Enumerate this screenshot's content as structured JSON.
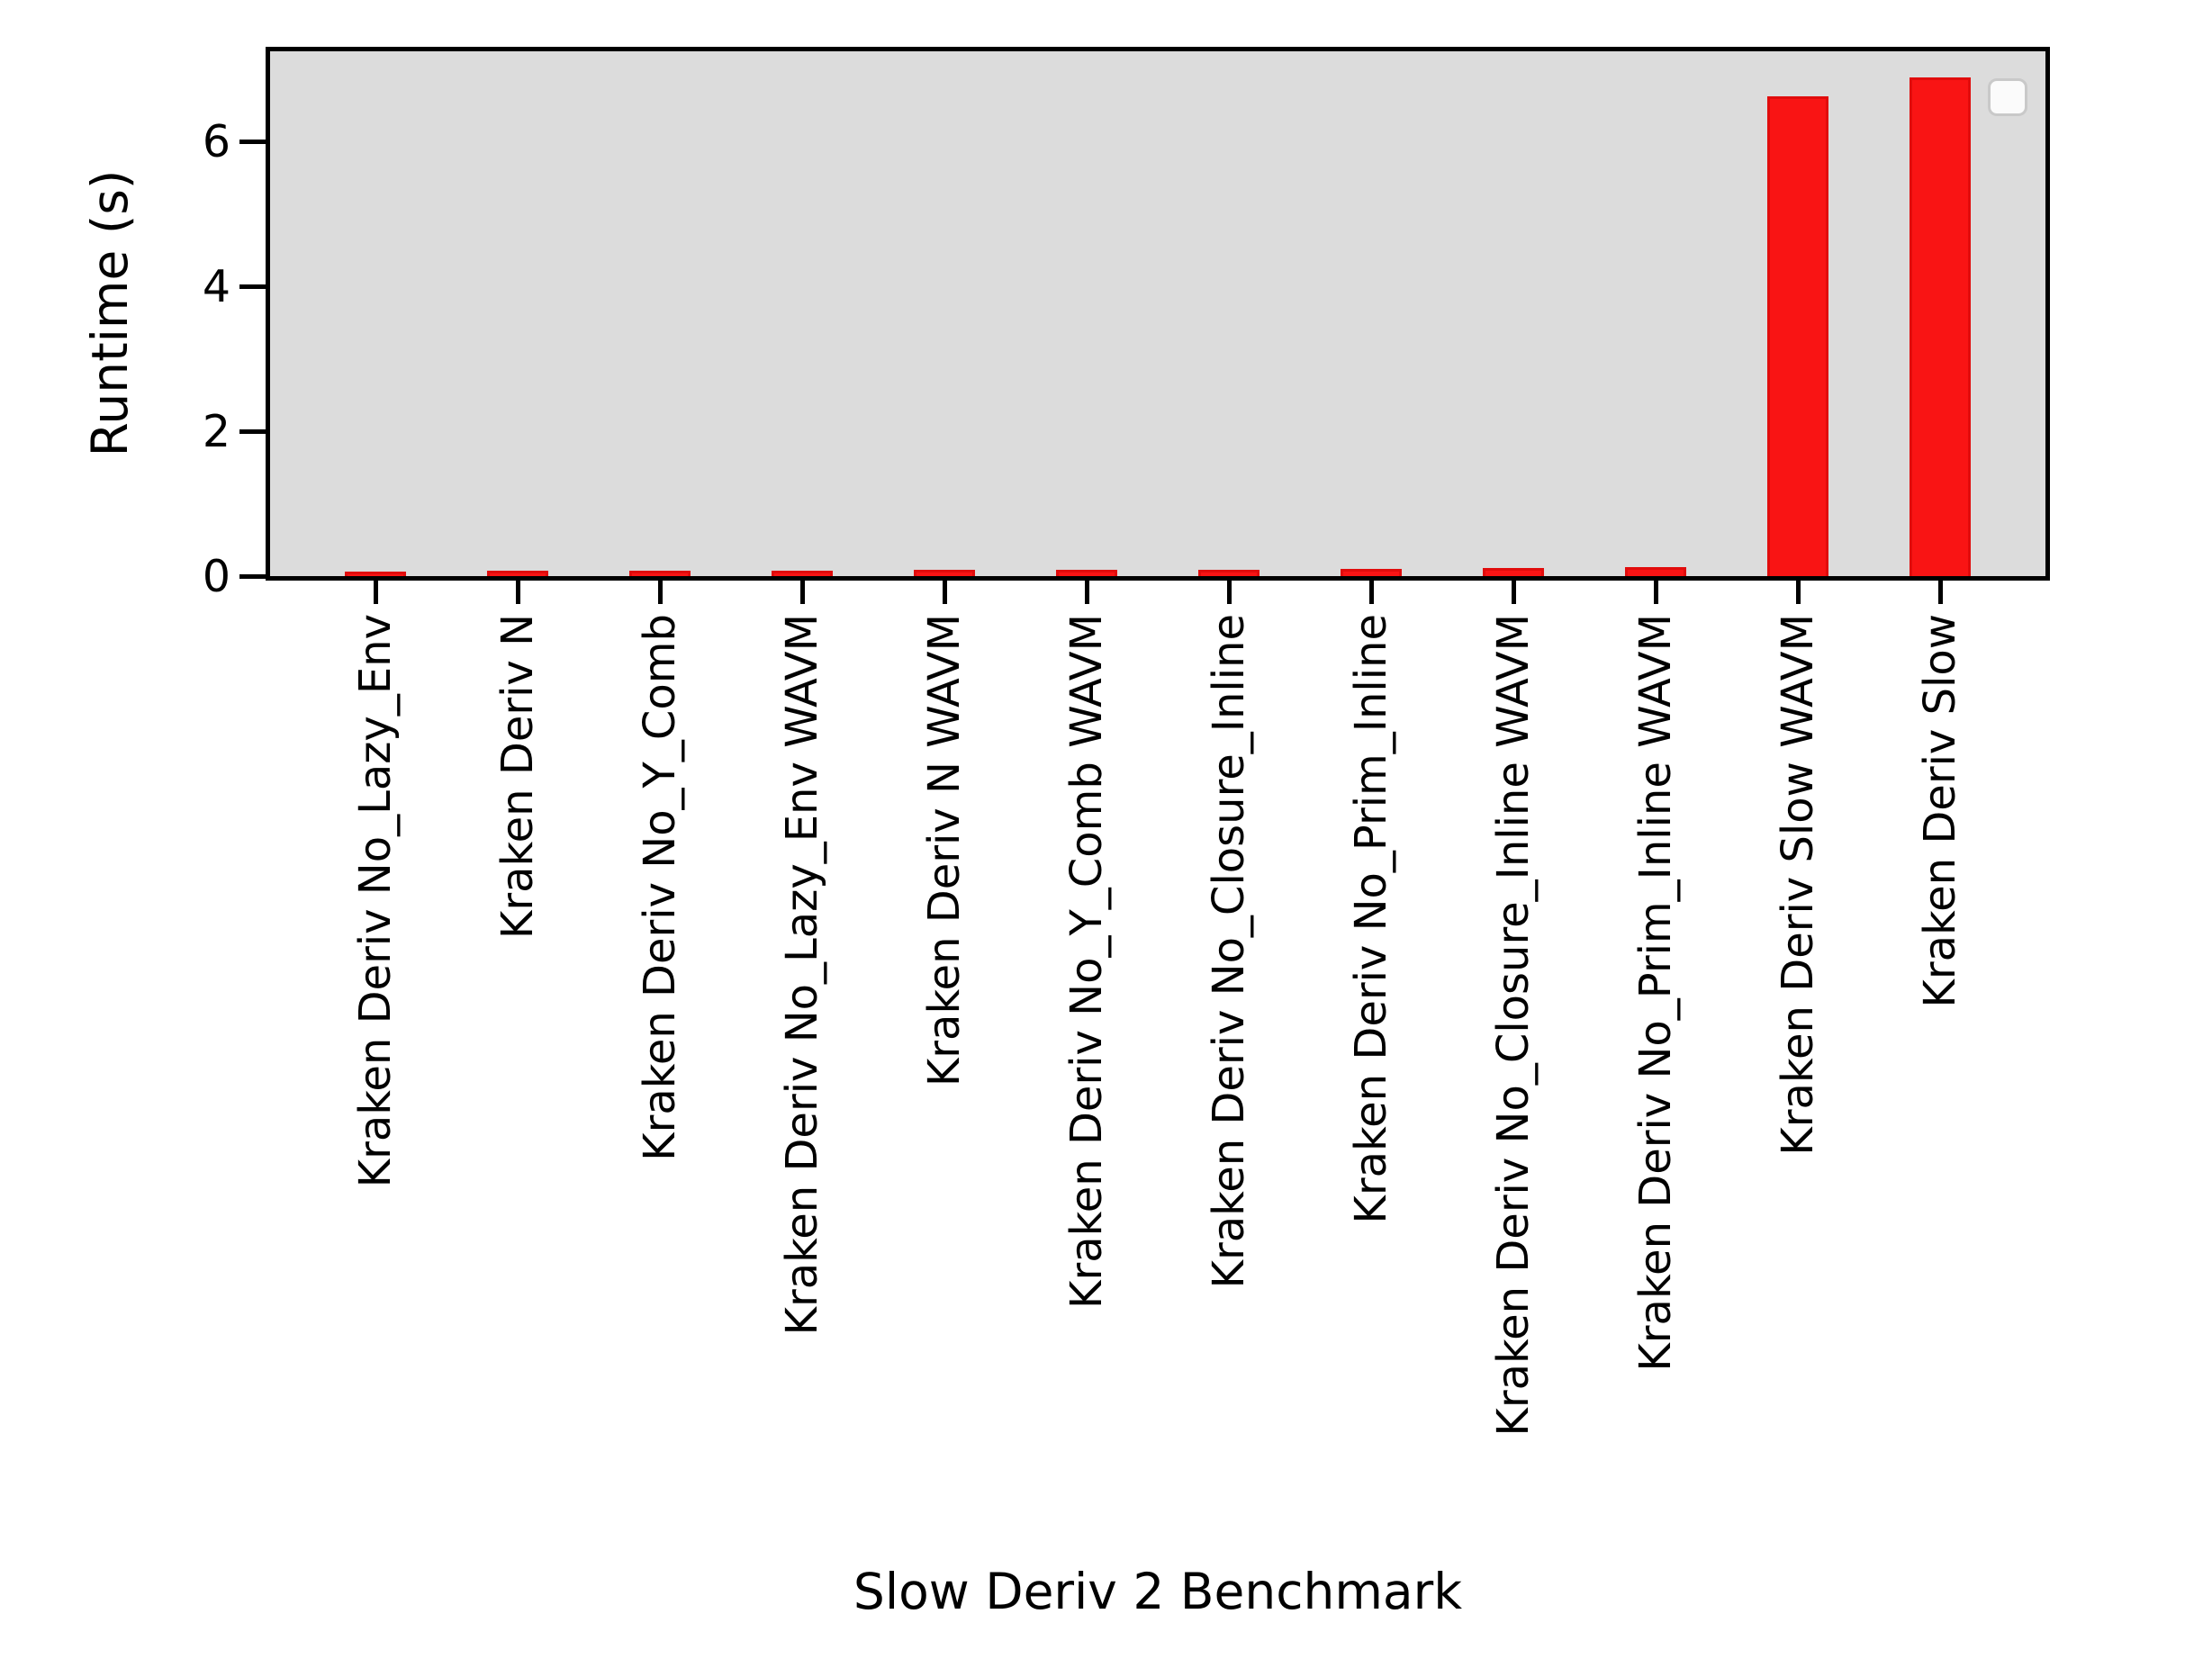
{
  "figure": {
    "background": "#ffffff",
    "plot_background": "#dcdcdc",
    "spine_color": "#000000",
    "text_color": "#000000"
  },
  "chart_data": {
    "type": "bar",
    "title": "",
    "xlabel": "Slow Deriv 2 Benchmark",
    "ylabel": "Runtime (s)",
    "categories": [
      "Kraken Deriv No_Lazy_Env",
      "Kraken Deriv N",
      "Kraken Deriv No_Y_Comb",
      "Kraken Deriv No_Lazy_Env WAVM",
      "Kraken Deriv N WAVM",
      "Kraken Deriv No_Y_Comb WAVM",
      "Kraken Deriv No_Closure_Inline",
      "Kraken Deriv No_Prim_Inline",
      "Kraken Deriv No_Closure_Inline WAVM",
      "Kraken Deriv No_Prim_Inline WAVM",
      "Kraken Deriv Slow WAVM",
      "Kraken Deriv Slow"
    ],
    "values": [
      0.06,
      0.07,
      0.07,
      0.08,
      0.09,
      0.09,
      0.09,
      0.1,
      0.11,
      0.12,
      6.63,
      6.89
    ],
    "yticks": [
      0,
      2,
      4,
      6
    ],
    "ylim": [
      0,
      7.25
    ],
    "bar_color": "#f91414",
    "bar_edge_color": "#e10c0c",
    "grid": false,
    "legend": {
      "visible": true,
      "entries": [],
      "position": "upper right"
    }
  }
}
